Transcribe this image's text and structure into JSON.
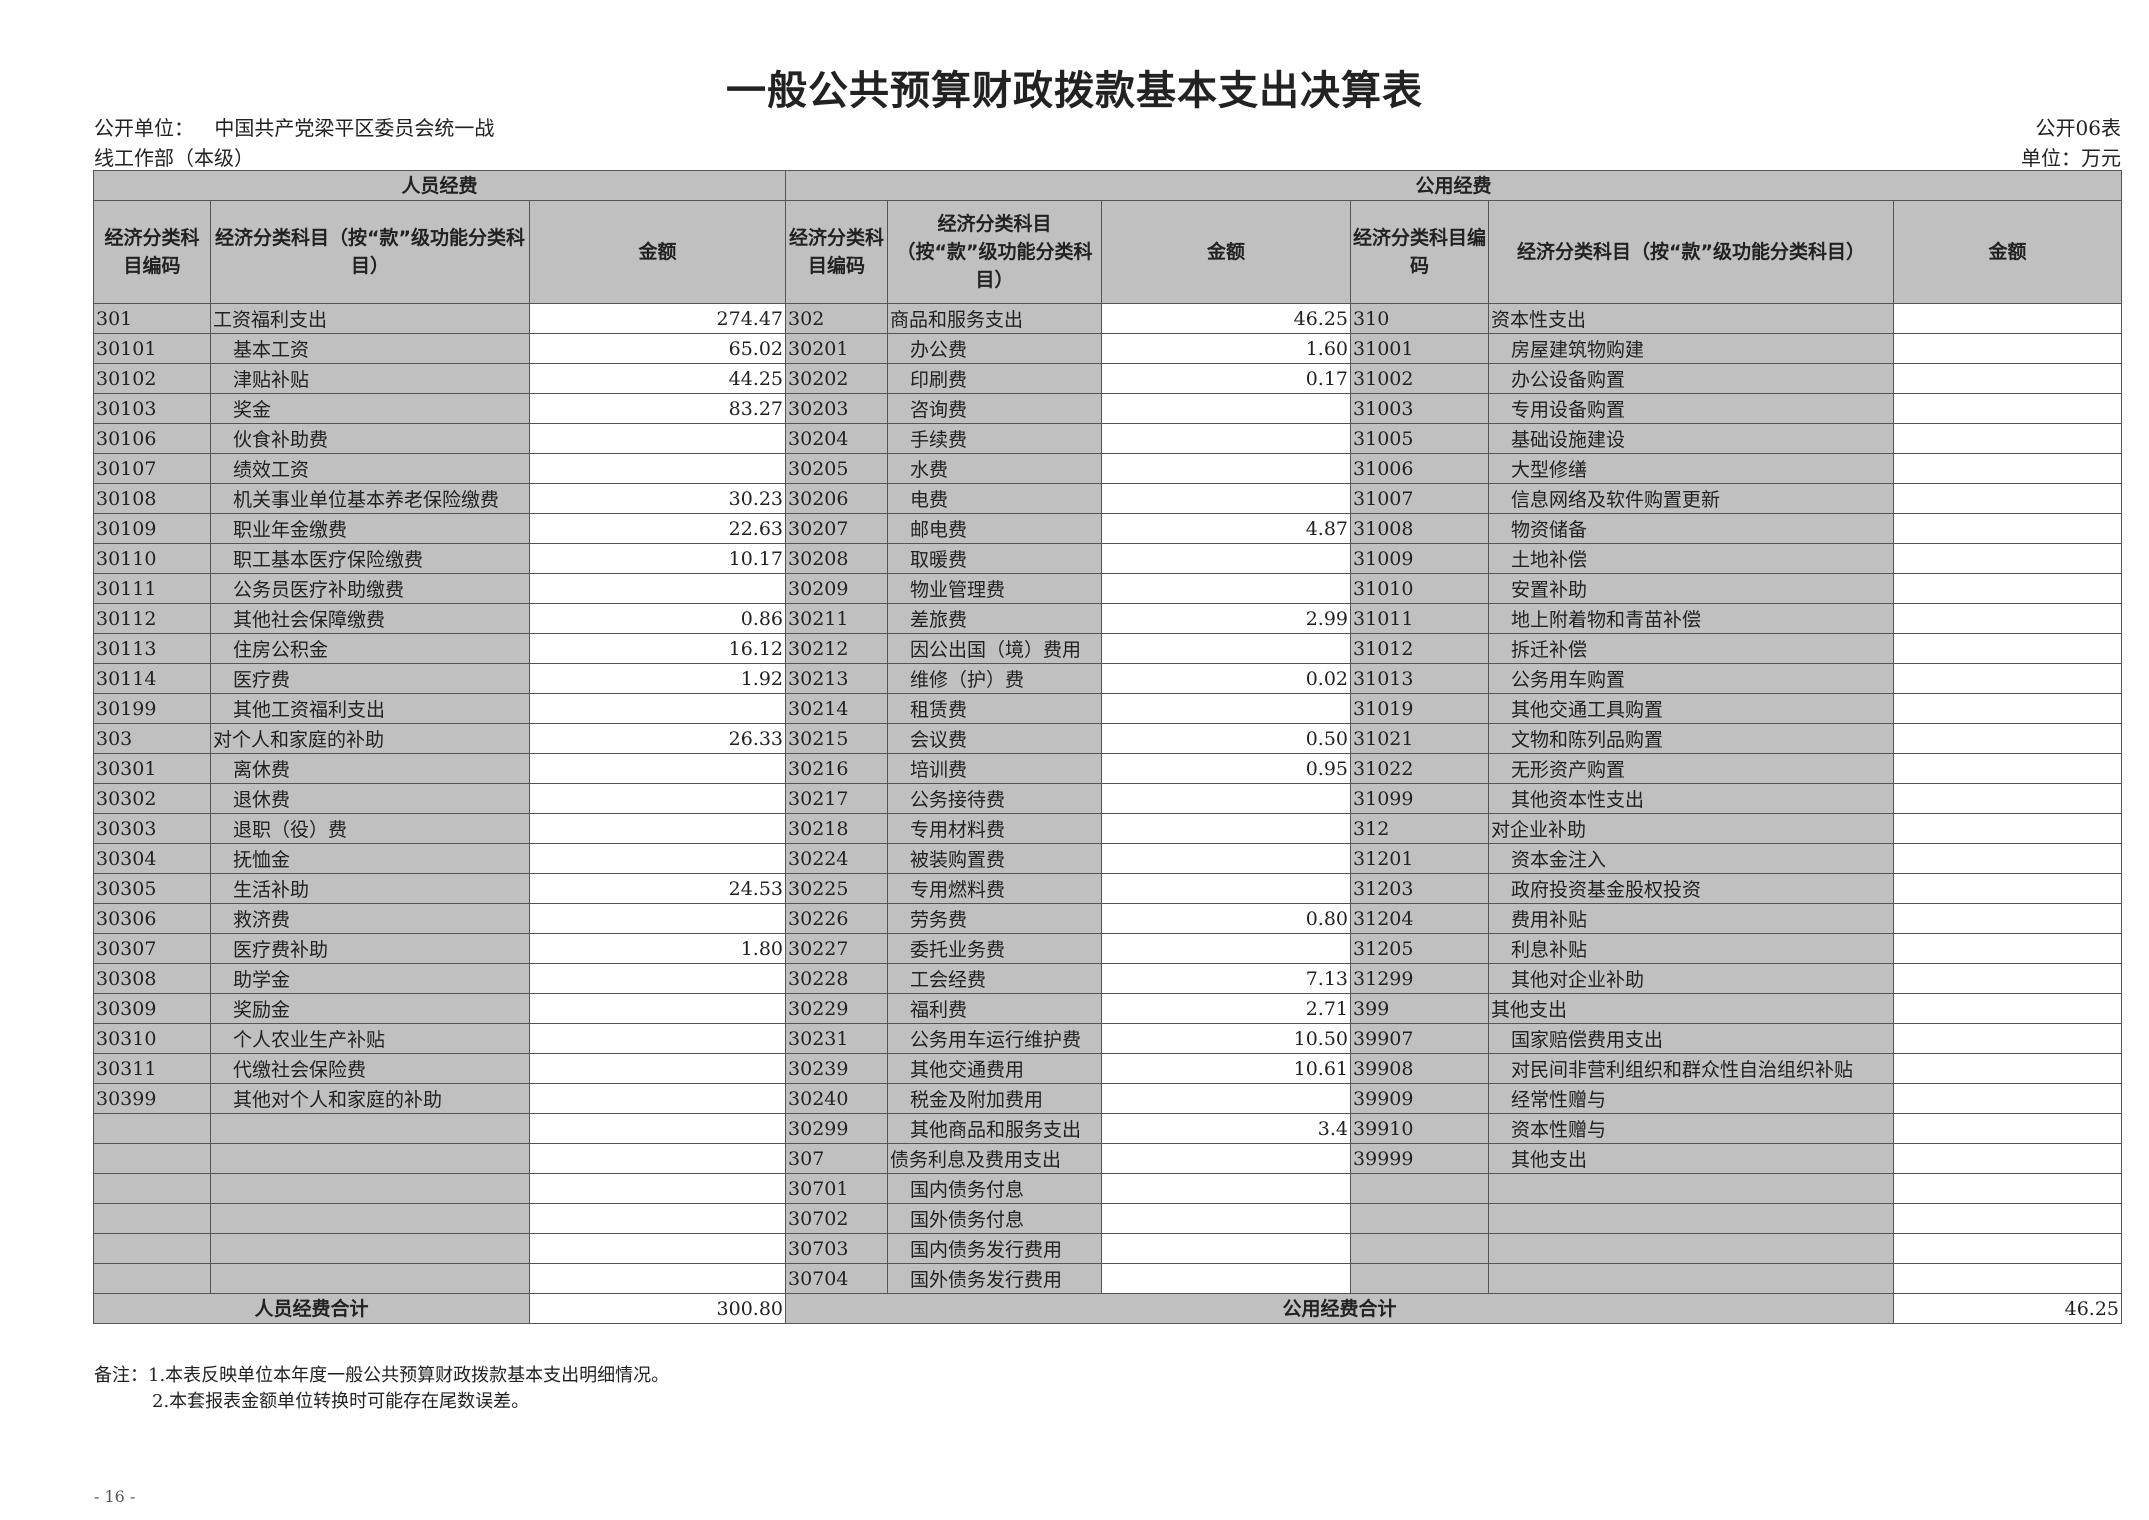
{
  "title": "一般公共预算财政拨款基本支出决算表",
  "unit_label": "公开单位：",
  "unit_name_line1": "中国共产党梁平区委员会统一战",
  "unit_name_line2": "线工作部（本级）",
  "table_no": "公开06表",
  "currency_unit": "单位：万元",
  "groups": {
    "personnel": "人员经费",
    "public": "公用经费"
  },
  "headers": {
    "p_code": "经济分类科目编码",
    "p_name": "经济分类科目（按“款”级功能分类科目）",
    "p_amount": "金额",
    "m_code": "经济分类科目编码",
    "m_name": "经济分类科目（按“款”级功能分类科目）",
    "m_amount": "金额",
    "r_code": "经济分类科目编码",
    "r_name": "经济分类科目（按“款”级功能分类科目）",
    "r_amount": "金额"
  },
  "personnel_rows": [
    [
      "301",
      "工资福利支出",
      "274.47"
    ],
    [
      "30101",
      "基本工资",
      "65.02"
    ],
    [
      "30102",
      "津贴补贴",
      "44.25"
    ],
    [
      "30103",
      "奖金",
      "83.27"
    ],
    [
      "30106",
      "伙食补助费",
      ""
    ],
    [
      "30107",
      "绩效工资",
      ""
    ],
    [
      "30108",
      "机关事业单位基本养老保险缴费",
      "30.23"
    ],
    [
      "30109",
      "职业年金缴费",
      "22.63"
    ],
    [
      "30110",
      "职工基本医疗保险缴费",
      "10.17"
    ],
    [
      "30111",
      "公务员医疗补助缴费",
      ""
    ],
    [
      "30112",
      "其他社会保障缴费",
      "0.86"
    ],
    [
      "30113",
      "住房公积金",
      "16.12"
    ],
    [
      "30114",
      "医疗费",
      "1.92"
    ],
    [
      "30199",
      "其他工资福利支出",
      ""
    ],
    [
      "303",
      "对个人和家庭的补助",
      "26.33"
    ],
    [
      "30301",
      "离休费",
      ""
    ],
    [
      "30302",
      "退休费",
      ""
    ],
    [
      "30303",
      "退职（役）费",
      ""
    ],
    [
      "30304",
      "抚恤金",
      ""
    ],
    [
      "30305",
      "生活补助",
      "24.53"
    ],
    [
      "30306",
      "救济费",
      ""
    ],
    [
      "30307",
      "医疗费补助",
      "1.80"
    ],
    [
      "30308",
      "助学金",
      ""
    ],
    [
      "30309",
      "奖励金",
      ""
    ],
    [
      "30310",
      "个人农业生产补贴",
      ""
    ],
    [
      "30311",
      "代缴社会保险费",
      ""
    ],
    [
      "30399",
      "其他对个人和家庭的补助",
      ""
    ],
    [
      "",
      "",
      ""
    ],
    [
      "",
      "",
      ""
    ],
    [
      "",
      "",
      ""
    ],
    [
      "",
      "",
      ""
    ],
    [
      "",
      "",
      ""
    ],
    [
      "",
      "",
      ""
    ]
  ],
  "public_rows_a": [
    [
      "302",
      "商品和服务支出",
      "46.25"
    ],
    [
      "30201",
      "办公费",
      "1.60"
    ],
    [
      "30202",
      "印刷费",
      "0.17"
    ],
    [
      "30203",
      "咨询费",
      ""
    ],
    [
      "30204",
      "手续费",
      ""
    ],
    [
      "30205",
      "水费",
      ""
    ],
    [
      "30206",
      "电费",
      ""
    ],
    [
      "30207",
      "邮电费",
      "4.87"
    ],
    [
      "30208",
      "取暖费",
      ""
    ],
    [
      "30209",
      "物业管理费",
      ""
    ],
    [
      "30211",
      "差旅费",
      "2.99"
    ],
    [
      "30212",
      "因公出国（境）费用",
      ""
    ],
    [
      "30213",
      "维修（护）费",
      "0.02"
    ],
    [
      "30214",
      "租赁费",
      ""
    ],
    [
      "30215",
      "会议费",
      "0.50"
    ],
    [
      "30216",
      "培训费",
      "0.95"
    ],
    [
      "30217",
      "公务接待费",
      ""
    ],
    [
      "30218",
      "专用材料费",
      ""
    ],
    [
      "30224",
      "被装购置费",
      ""
    ],
    [
      "30225",
      "专用燃料费",
      ""
    ],
    [
      "30226",
      "劳务费",
      "0.80"
    ],
    [
      "30227",
      "委托业务费",
      ""
    ],
    [
      "30228",
      "工会经费",
      "7.13"
    ],
    [
      "30229",
      "福利费",
      "2.71"
    ],
    [
      "30231",
      "公务用车运行维护费",
      "10.50"
    ],
    [
      "30239",
      "其他交通费用",
      "10.61"
    ],
    [
      "30240",
      "税金及附加费用",
      ""
    ],
    [
      "30299",
      "其他商品和服务支出",
      "3.4"
    ],
    [
      "307",
      "债务利息及费用支出",
      ""
    ],
    [
      "30701",
      "国内债务付息",
      ""
    ],
    [
      "30702",
      "国外债务付息",
      ""
    ],
    [
      "30703",
      "国内债务发行费用",
      ""
    ],
    [
      "30704",
      "国外债务发行费用",
      ""
    ]
  ],
  "public_rows_b": [
    [
      "310",
      "资本性支出",
      ""
    ],
    [
      "31001",
      "房屋建筑物购建",
      ""
    ],
    [
      "31002",
      "办公设备购置",
      ""
    ],
    [
      "31003",
      "专用设备购置",
      ""
    ],
    [
      "31005",
      "基础设施建设",
      ""
    ],
    [
      "31006",
      "大型修缮",
      ""
    ],
    [
      "31007",
      "信息网络及软件购置更新",
      ""
    ],
    [
      "31008",
      "物资储备",
      ""
    ],
    [
      "31009",
      "土地补偿",
      ""
    ],
    [
      "31010",
      "安置补助",
      ""
    ],
    [
      "31011",
      "地上附着物和青苗补偿",
      ""
    ],
    [
      "31012",
      "拆迁补偿",
      ""
    ],
    [
      "31013",
      "公务用车购置",
      ""
    ],
    [
      "31019",
      "其他交通工具购置",
      ""
    ],
    [
      "31021",
      "文物和陈列品购置",
      ""
    ],
    [
      "31022",
      "无形资产购置",
      ""
    ],
    [
      "31099",
      "其他资本性支出",
      ""
    ],
    [
      "312",
      "对企业补助",
      ""
    ],
    [
      "31201",
      "资本金注入",
      ""
    ],
    [
      "31203",
      "政府投资基金股权投资",
      ""
    ],
    [
      "31204",
      "费用补贴",
      ""
    ],
    [
      "31205",
      "利息补贴",
      ""
    ],
    [
      "31299",
      "其他对企业补助",
      ""
    ],
    [
      "399",
      "其他支出",
      ""
    ],
    [
      "39907",
      "国家赔偿费用支出",
      ""
    ],
    [
      "39908",
      "对民间非营利组织和群众性自治组织补贴",
      ""
    ],
    [
      "39909",
      "经常性赠与",
      ""
    ],
    [
      "39910",
      "资本性赠与",
      ""
    ],
    [
      "39999",
      "其他支出",
      ""
    ],
    [
      "",
      "",
      ""
    ],
    [
      "",
      "",
      ""
    ],
    [
      "",
      "",
      ""
    ],
    [
      "",
      "",
      ""
    ]
  ],
  "totals": {
    "personnel_label": "人员经费合计",
    "personnel_value": "300.80",
    "public_label": "公用经费合计",
    "public_value": "46.25"
  },
  "notes": {
    "line1": "备注：1.本表反映单位本年度一般公共预算财政拨款基本支出明细情况。",
    "line2": "2.本套报表金额单位转换时可能存在尾数误差。"
  },
  "page_number": "- 16 -"
}
